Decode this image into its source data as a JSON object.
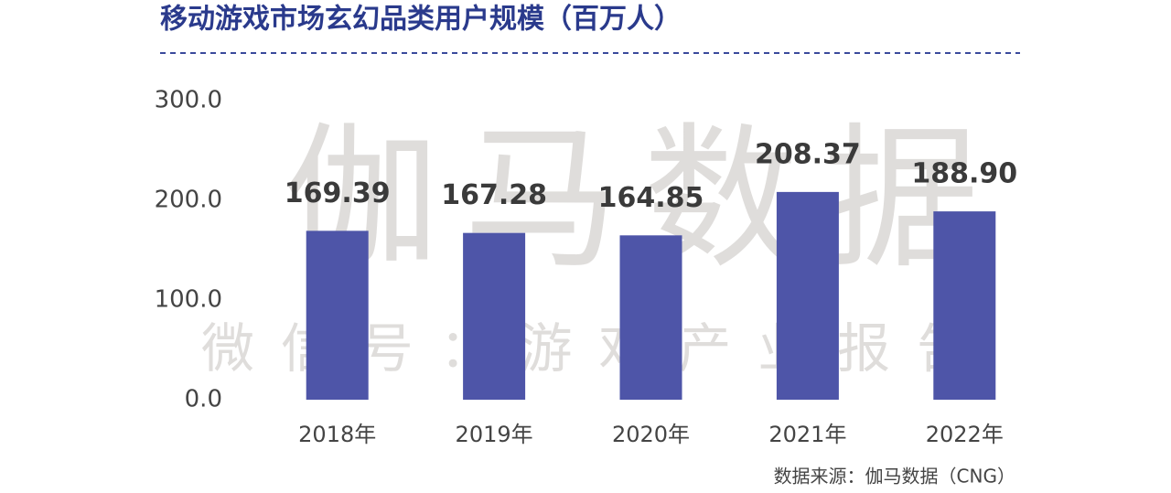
{
  "chart_data": {
    "type": "bar",
    "title": "移动游戏市场玄幻品类用户规模（百万人）",
    "categories": [
      "2018年",
      "2019年",
      "2020年",
      "2021年",
      "2022年"
    ],
    "values": [
      169.39,
      167.28,
      164.85,
      208.37,
      188.9
    ],
    "value_labels": [
      "169.39",
      "167.28",
      "164.85",
      "208.37",
      "188.90"
    ],
    "color": "#4e55a8",
    "ylim": [
      0,
      300
    ],
    "yticks": [
      {
        "value": 0,
        "label": "0.0"
      },
      {
        "value": 100,
        "label": "100.0"
      },
      {
        "value": 200,
        "label": "200.0"
      },
      {
        "value": 300,
        "label": "300.0"
      }
    ],
    "grid": false,
    "source": "数据来源：伽马数据（CNG）",
    "watermark": "伽马数据",
    "watermark_subtitle": "微信号：游戏产业报告"
  }
}
